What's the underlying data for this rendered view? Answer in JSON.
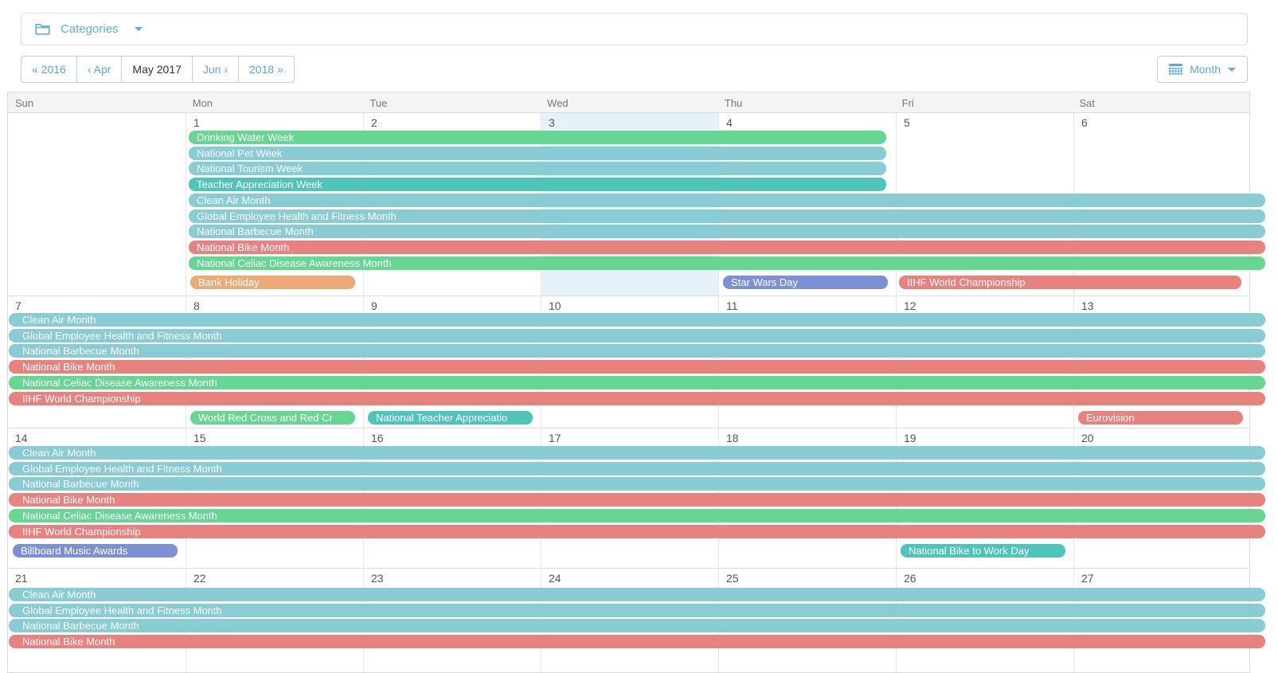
{
  "filter_bar": {
    "label": "Categories"
  },
  "toolbar": {
    "prev_year": "« 2016",
    "prev_month": "‹ Apr",
    "current": "May 2017",
    "next_month": "Jun ›",
    "next_year": "2018 »",
    "view_mode": "Month"
  },
  "calendar": {
    "day_headers": [
      "Sun",
      "Mon",
      "Tue",
      "Wed",
      "Thu",
      "Fri",
      "Sat"
    ],
    "colors": {
      "teal": "#8ACCD3",
      "teal_dark": "#4FC5BA",
      "green": "#67D692",
      "red": "#E8827F",
      "orange": "#EBAA77",
      "blue": "#7C90D3",
      "today_bg": "#E5F2FA",
      "link_blue": "#5DA5DC"
    },
    "weeks": [
      {
        "days": [
          "",
          "1",
          "2",
          "3",
          "4",
          "5",
          "6"
        ],
        "today_col": 3,
        "gap_before_last_row": true,
        "rows": [
          [
            {
              "label": "Drinking Water Week",
              "color": "green",
              "start": 1,
              "span": 4
            }
          ],
          [
            {
              "label": "National Pet Week",
              "color": "teal",
              "start": 1,
              "span": 4
            }
          ],
          [
            {
              "label": "National Tourism Week",
              "color": "teal",
              "start": 1,
              "span": 4
            }
          ],
          [
            {
              "label": "Teacher Appreciation Week",
              "color": "teal_dark",
              "start": 1,
              "span": 4
            }
          ],
          [
            {
              "label": "Clean Air Month",
              "color": "teal",
              "start": 1,
              "span": 6,
              "continues_right": true
            }
          ],
          [
            {
              "label": "Global Employee Health and Fitness Month",
              "color": "teal",
              "start": 1,
              "span": 6,
              "continues_right": true
            }
          ],
          [
            {
              "label": "National Barbecue Month",
              "color": "teal",
              "start": 1,
              "span": 6,
              "continues_right": true
            }
          ],
          [
            {
              "label": "National Bike Month",
              "color": "red",
              "start": 1,
              "span": 6,
              "continues_right": true
            }
          ],
          [
            {
              "label": "National Celiac Disease Awareness Month",
              "color": "green",
              "start": 1,
              "span": 6,
              "continues_right": true
            }
          ],
          [
            {
              "label": "Bank Holiday",
              "color": "orange",
              "start": 1,
              "span": 1
            },
            {
              "label": "Star Wars Day",
              "color": "blue",
              "start": 4,
              "span": 1
            },
            {
              "label": "IIHF World Championship",
              "color": "red",
              "start": 5,
              "span": 2
            }
          ]
        ]
      },
      {
        "days": [
          "7",
          "8",
          "9",
          "10",
          "11",
          "12",
          "13"
        ],
        "gap_before_last_row": true,
        "rows": [
          [
            {
              "label": "Clean Air Month",
              "color": "teal",
              "start": 0,
              "span": 7,
              "continues_left": true,
              "continues_right": true
            }
          ],
          [
            {
              "label": "Global Employee Health and Fitness Month",
              "color": "teal",
              "start": 0,
              "span": 7,
              "continues_left": true,
              "continues_right": true
            }
          ],
          [
            {
              "label": "National Barbecue Month",
              "color": "teal",
              "start": 0,
              "span": 7,
              "continues_left": true,
              "continues_right": true
            }
          ],
          [
            {
              "label": "National Bike Month",
              "color": "red",
              "start": 0,
              "span": 7,
              "continues_left": true,
              "continues_right": true
            }
          ],
          [
            {
              "label": "National Celiac Disease Awareness Month",
              "color": "green",
              "start": 0,
              "span": 7,
              "continues_left": true,
              "continues_right": true
            }
          ],
          [
            {
              "label": "IIHF World Championship",
              "color": "red",
              "start": 0,
              "span": 7,
              "continues_left": true,
              "continues_right": true
            }
          ],
          [
            {
              "label": "World Red Cross and Red Cr",
              "color": "green",
              "start": 1,
              "span": 1
            },
            {
              "label": "National Teacher Appreciatio",
              "color": "teal_dark",
              "start": 2,
              "span": 1
            },
            {
              "label": "Eurovision",
              "color": "red",
              "start": 6,
              "span": 1
            }
          ]
        ]
      },
      {
        "days": [
          "14",
          "15",
          "16",
          "17",
          "18",
          "19",
          "20"
        ],
        "gap_before_last_row": true,
        "rows": [
          [
            {
              "label": "Clean Air Month",
              "color": "teal",
              "start": 0,
              "span": 7,
              "continues_left": true,
              "continues_right": true
            }
          ],
          [
            {
              "label": "Global Employee Health and Fitness Month",
              "color": "teal",
              "start": 0,
              "span": 7,
              "continues_left": true,
              "continues_right": true
            }
          ],
          [
            {
              "label": "National Barbecue Month",
              "color": "teal",
              "start": 0,
              "span": 7,
              "continues_left": true,
              "continues_right": true
            }
          ],
          [
            {
              "label": "National Bike Month",
              "color": "red",
              "start": 0,
              "span": 7,
              "continues_left": true,
              "continues_right": true
            }
          ],
          [
            {
              "label": "National Celiac Disease Awareness Month",
              "color": "green",
              "start": 0,
              "span": 7,
              "continues_left": true,
              "continues_right": true
            }
          ],
          [
            {
              "label": "IIHF World Championship",
              "color": "red",
              "start": 0,
              "span": 7,
              "continues_left": true,
              "continues_right": true
            }
          ],
          [
            {
              "label": "Billboard Music Awards",
              "color": "blue",
              "start": 0,
              "span": 1
            },
            {
              "label": "National Bike to Work Day",
              "color": "teal_dark",
              "start": 5,
              "span": 1
            }
          ]
        ]
      },
      {
        "days": [
          "21",
          "22",
          "23",
          "24",
          "25",
          "26",
          "27"
        ],
        "gap_before_last_row": false,
        "rows": [
          [
            {
              "label": "Clean Air Month",
              "color": "teal",
              "start": 0,
              "span": 7,
              "continues_left": true,
              "continues_right": true
            }
          ],
          [
            {
              "label": "Global Employee Health and Fitness Month",
              "color": "teal",
              "start": 0,
              "span": 7,
              "continues_left": true,
              "continues_right": true
            }
          ],
          [
            {
              "label": "National Barbecue Month",
              "color": "teal",
              "start": 0,
              "span": 7,
              "continues_left": true,
              "continues_right": true
            }
          ],
          [
            {
              "label": "National Bike Month",
              "color": "red",
              "start": 0,
              "span": 7,
              "continues_left": true,
              "continues_right": true
            }
          ]
        ]
      }
    ]
  }
}
